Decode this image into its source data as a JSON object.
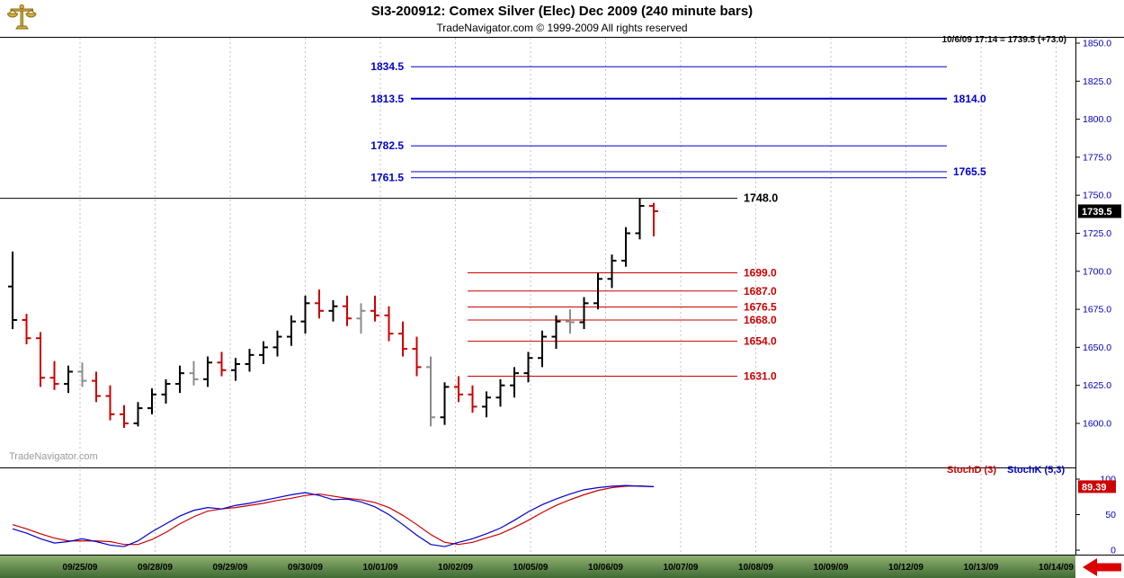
{
  "header": {
    "title": "SI3-200912:  Comex Silver (Elec) Dec 2009  (240 minute bars)",
    "subtitle": "TradeNavigator.com © 1999-2009 All rights reserved",
    "quote": "10/6/09 17:14 = 1739.5 (+73.0)",
    "watermark": "TradeNavigator.com"
  },
  "indicator_labels": {
    "stoch_d": "StochD (3)",
    "stoch_k": "StochK (5,3)"
  },
  "colors": {
    "up": "#000000",
    "down": "#cc0000",
    "neutral": "#8c8c8c",
    "axis_text": "#0000b4",
    "level_blue": "#0000cc",
    "level_red": "#cc0000",
    "stoch_k": "#0000cc",
    "stoch_d": "#cc0000",
    "tag_bg_black": "#000000",
    "tag_bg_red": "#cc0000",
    "date_bar_top": "#8fb06f",
    "date_bar_bottom": "#3f6b33"
  },
  "chart_data": {
    "type": "ohlc-bar",
    "title": "SI3-200912: Comex Silver (Elec) Dec 2009 (240 minute bars)",
    "x_dates": [
      "09/25/09",
      "09/28/09",
      "09/29/09",
      "09/30/09",
      "10/01/09",
      "10/02/09",
      "10/05/09",
      "10/06/09",
      "10/07/09",
      "10/08/09",
      "10/09/09",
      "10/12/09",
      "10/13/09",
      "10/14/09"
    ],
    "price_range": [
      1600,
      1850
    ],
    "price_ticks": [
      1850,
      1825,
      1800,
      1775,
      1750,
      1725,
      1700,
      1675,
      1650,
      1625,
      1600
    ],
    "last_price": "1739.5",
    "last_change": "+73.0",
    "last_time": "10/6/09 17:14",
    "bars": [
      [
        1690,
        1713,
        1662,
        1668,
        "b"
      ],
      [
        1668,
        1672,
        1652,
        1656,
        "r"
      ],
      [
        1656,
        1660,
        1624,
        1630,
        "r"
      ],
      [
        1630,
        1641,
        1622,
        1626,
        "r"
      ],
      [
        1626,
        1638,
        1620,
        1634,
        "b"
      ],
      [
        1634,
        1640,
        1624,
        1628,
        "g"
      ],
      [
        1628,
        1634,
        1614,
        1618,
        "r"
      ],
      [
        1618,
        1625,
        1602,
        1606,
        "r"
      ],
      [
        1606,
        1612,
        1597,
        1600,
        "r"
      ],
      [
        1600,
        1614,
        1598,
        1610,
        "b"
      ],
      [
        1610,
        1623,
        1606,
        1619,
        "b"
      ],
      [
        1619,
        1629,
        1613,
        1626,
        "b"
      ],
      [
        1626,
        1638,
        1620,
        1633,
        "b"
      ],
      [
        1633,
        1641,
        1625,
        1629,
        "g"
      ],
      [
        1629,
        1644,
        1624,
        1640,
        "b"
      ],
      [
        1640,
        1647,
        1631,
        1635,
        "r"
      ],
      [
        1635,
        1643,
        1628,
        1639,
        "b"
      ],
      [
        1639,
        1649,
        1634,
        1645,
        "b"
      ],
      [
        1645,
        1654,
        1639,
        1650,
        "b"
      ],
      [
        1650,
        1661,
        1644,
        1657,
        "b"
      ],
      [
        1657,
        1671,
        1651,
        1667,
        "b"
      ],
      [
        1667,
        1684,
        1659,
        1679,
        "b"
      ],
      [
        1679,
        1688,
        1669,
        1674,
        "r"
      ],
      [
        1674,
        1681,
        1667,
        1677,
        "b"
      ],
      [
        1677,
        1684,
        1664,
        1669,
        "r"
      ],
      [
        1669,
        1679,
        1659,
        1674,
        "g"
      ],
      [
        1674,
        1684,
        1667,
        1671,
        "r"
      ],
      [
        1671,
        1677,
        1654,
        1659,
        "r"
      ],
      [
        1659,
        1667,
        1644,
        1649,
        "r"
      ],
      [
        1649,
        1657,
        1631,
        1637,
        "r"
      ],
      [
        1637,
        1644,
        1598,
        1604,
        "g"
      ],
      [
        1604,
        1627,
        1599,
        1624,
        "b"
      ],
      [
        1624,
        1631,
        1614,
        1619,
        "r"
      ],
      [
        1619,
        1625,
        1607,
        1611,
        "r"
      ],
      [
        1611,
        1621,
        1604,
        1617,
        "b"
      ],
      [
        1617,
        1629,
        1611,
        1625,
        "b"
      ],
      [
        1625,
        1637,
        1617,
        1633,
        "b"
      ],
      [
        1633,
        1647,
        1627,
        1643,
        "b"
      ],
      [
        1643,
        1661,
        1637,
        1657,
        "b"
      ],
      [
        1657,
        1671,
        1649,
        1667,
        "b"
      ],
      [
        1667,
        1675,
        1659,
        1666.5,
        "g"
      ],
      [
        1666.5,
        1683,
        1662,
        1679,
        "b"
      ],
      [
        1679,
        1699,
        1675,
        1695,
        "b"
      ],
      [
        1695,
        1711,
        1689,
        1707,
        "b"
      ],
      [
        1707,
        1729,
        1703,
        1725,
        "b"
      ],
      [
        1725,
        1748,
        1721,
        1743,
        "b"
      ],
      [
        1743,
        1745,
        1723,
        1739.5,
        "r"
      ]
    ],
    "levels": {
      "blue": [
        {
          "price": 1834.5,
          "left_label": "1834.5"
        },
        {
          "price": 1813.5,
          "left_label": "1813.5",
          "right_label": "1814.0",
          "weight": 2
        },
        {
          "price": 1782.5,
          "left_label": "1782.5"
        },
        {
          "price": 1765.5,
          "right_label": "1765.5"
        },
        {
          "price": 1761.5,
          "left_label": "1761.5"
        }
      ],
      "black": [
        {
          "price": 1748.0,
          "label": "1748.0"
        }
      ],
      "red": [
        {
          "price": 1699.0,
          "label": "1699.0"
        },
        {
          "price": 1687.0,
          "label": "1687.0"
        },
        {
          "price": 1676.5,
          "label": "1676.5"
        },
        {
          "price": 1668.0,
          "label": "1668.0"
        },
        {
          "price": 1654.0,
          "label": "1654.0"
        },
        {
          "price": 1631.0,
          "label": "1631.0"
        }
      ]
    },
    "stoch": {
      "range": [
        0,
        100
      ],
      "ticks": [
        100,
        50,
        0
      ],
      "last": "89.39",
      "k": [
        30,
        24,
        16,
        10,
        12,
        16,
        12,
        7,
        5,
        13,
        26,
        37,
        48,
        56,
        60,
        58,
        63,
        66,
        70,
        74,
        78,
        81,
        77,
        71,
        72,
        68,
        61,
        50,
        36,
        21,
        8,
        5,
        11,
        16,
        23,
        31,
        42,
        54,
        64,
        72,
        79,
        85,
        88,
        90,
        91,
        90,
        89.4
      ],
      "d": [
        36,
        30,
        23,
        17,
        13,
        13,
        13,
        12,
        8,
        8,
        15,
        25,
        37,
        47,
        55,
        58,
        60,
        63,
        66,
        70,
        73,
        77,
        79,
        76,
        73,
        71,
        67,
        60,
        49,
        36,
        22,
        11,
        8,
        11,
        17,
        23,
        32,
        42,
        53,
        63,
        71,
        78,
        84,
        88,
        90,
        90.5,
        89.4
      ]
    }
  }
}
